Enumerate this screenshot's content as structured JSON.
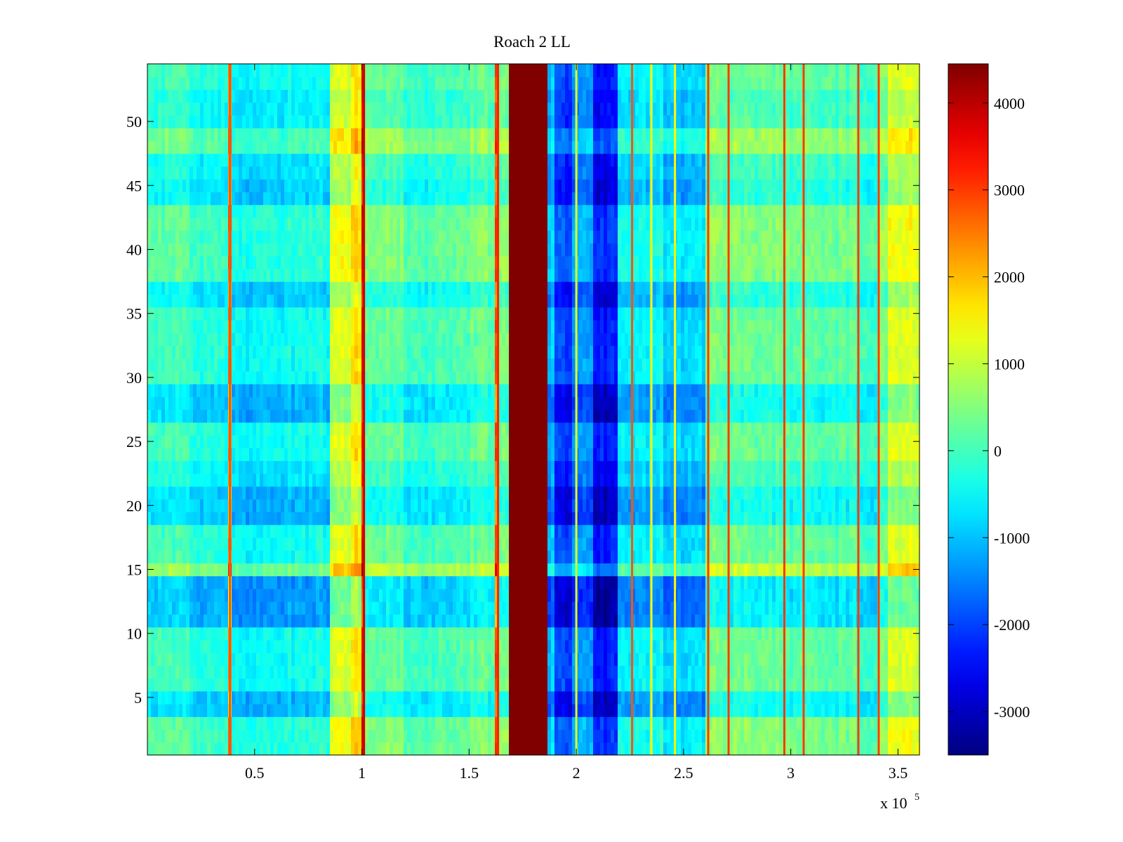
{
  "chart_data": {
    "type": "heatmap",
    "title": "Roach 2 LL",
    "xlabel": "",
    "ylabel": "",
    "x_multiplier_label": "x 10",
    "x_multiplier_exponent": "5",
    "xlim": [
      0,
      360000
    ],
    "ylim": [
      0.5,
      54.5
    ],
    "x_ticks": [
      {
        "value": 50000,
        "label": "0.5"
      },
      {
        "value": 100000,
        "label": "1"
      },
      {
        "value": 150000,
        "label": "1.5"
      },
      {
        "value": 200000,
        "label": "2"
      },
      {
        "value": 250000,
        "label": "2.5"
      },
      {
        "value": 300000,
        "label": "3"
      },
      {
        "value": 350000,
        "label": "3.5"
      }
    ],
    "y_ticks": [
      {
        "value": 5,
        "label": "5"
      },
      {
        "value": 10,
        "label": "10"
      },
      {
        "value": 15,
        "label": "15"
      },
      {
        "value": 20,
        "label": "20"
      },
      {
        "value": 25,
        "label": "25"
      },
      {
        "value": 30,
        "label": "30"
      },
      {
        "value": 35,
        "label": "35"
      },
      {
        "value": 40,
        "label": "40"
      },
      {
        "value": 45,
        "label": "45"
      },
      {
        "value": 50,
        "label": "50"
      }
    ],
    "n_rows": 54,
    "colormap": "jet",
    "clim": [
      -3500,
      4450
    ],
    "colorbar_ticks": [
      {
        "value": 4000,
        "label": "4000"
      },
      {
        "value": 3000,
        "label": "3000"
      },
      {
        "value": 2000,
        "label": "2000"
      },
      {
        "value": 1000,
        "label": "1000"
      },
      {
        "value": 0,
        "label": "0"
      },
      {
        "value": -1000,
        "label": "-1000"
      },
      {
        "value": -2000,
        "label": "-2000"
      },
      {
        "value": -3000,
        "label": "-3000"
      }
    ],
    "column_profile": [
      {
        "x_start": 0,
        "x_end": 20000,
        "value": 0
      },
      {
        "x_start": 20000,
        "x_end": 37000,
        "value": -300
      },
      {
        "x_start": 37000,
        "x_end": 40000,
        "value": 2500
      },
      {
        "x_start": 40000,
        "x_end": 60000,
        "value": -500
      },
      {
        "x_start": 60000,
        "x_end": 85000,
        "value": -400
      },
      {
        "x_start": 85000,
        "x_end": 95000,
        "value": 1200
      },
      {
        "x_start": 95000,
        "x_end": 99500,
        "value": 1700
      },
      {
        "x_start": 99500,
        "x_end": 101500,
        "value": 3800
      },
      {
        "x_start": 101500,
        "x_end": 120000,
        "value": 300
      },
      {
        "x_start": 120000,
        "x_end": 150000,
        "value": 0
      },
      {
        "x_start": 150000,
        "x_end": 162000,
        "value": 300
      },
      {
        "x_start": 162000,
        "x_end": 164000,
        "value": 3000
      },
      {
        "x_start": 164000,
        "x_end": 168000,
        "value": 500
      },
      {
        "x_start": 168000,
        "x_end": 186000,
        "value": 4450
      },
      {
        "x_start": 186000,
        "x_end": 190000,
        "value": -1000
      },
      {
        "x_start": 190000,
        "x_end": 198000,
        "value": -2000
      },
      {
        "x_start": 198000,
        "x_end": 207000,
        "value": -1200
      },
      {
        "x_start": 207000,
        "x_end": 220000,
        "value": -2300
      },
      {
        "x_start": 220000,
        "x_end": 240000,
        "value": -500
      },
      {
        "x_start": 240000,
        "x_end": 260000,
        "value": -800
      },
      {
        "x_start": 260000,
        "x_end": 280000,
        "value": 400
      },
      {
        "x_start": 280000,
        "x_end": 300000,
        "value": 300
      },
      {
        "x_start": 300000,
        "x_end": 330000,
        "value": 200
      },
      {
        "x_start": 330000,
        "x_end": 340000,
        "value": 0
      },
      {
        "x_start": 340000,
        "x_end": 346000,
        "value": 600
      },
      {
        "x_start": 346000,
        "x_end": 360000,
        "value": 1200
      }
    ],
    "row_offsets": [
      {
        "rows": [
          1,
          2,
          3
        ],
        "value": 200
      },
      {
        "rows": [
          4,
          5
        ],
        "value": -700
      },
      {
        "rows": [
          11,
          12,
          13,
          14
        ],
        "value": -900
      },
      {
        "rows": [
          15
        ],
        "value": 700
      },
      {
        "rows": [
          19,
          20,
          21
        ],
        "value": -700
      },
      {
        "rows": [
          22,
          23
        ],
        "value": -300
      },
      {
        "rows": [
          27,
          28,
          29
        ],
        "value": -700
      },
      {
        "rows": [
          36,
          37
        ],
        "value": -500
      },
      {
        "rows": [
          38,
          39,
          40,
          41,
          42,
          43
        ],
        "value": 200
      },
      {
        "rows": [
          44,
          45
        ],
        "value": -500
      },
      {
        "rows": [
          46,
          47
        ],
        "value": -300
      },
      {
        "rows": [
          48,
          49
        ],
        "value": 400
      },
      {
        "rows": [
          50,
          51,
          52
        ],
        "value": -200
      }
    ],
    "vertical_lines": [
      {
        "x": 38500,
        "value": 2800
      },
      {
        "x": 101000,
        "value": 3800
      },
      {
        "x": 163500,
        "value": 3200
      },
      {
        "x": 200000,
        "value": 1200
      },
      {
        "x": 226000,
        "value": 2800
      },
      {
        "x": 235000,
        "value": 1500
      },
      {
        "x": 246000,
        "value": 1500
      },
      {
        "x": 261500,
        "value": 3000
      },
      {
        "x": 271000,
        "value": 3000
      },
      {
        "x": 297000,
        "value": 3000
      },
      {
        "x": 306000,
        "value": 3000
      },
      {
        "x": 331500,
        "value": 3000
      },
      {
        "x": 341000,
        "value": 3000
      }
    ]
  }
}
